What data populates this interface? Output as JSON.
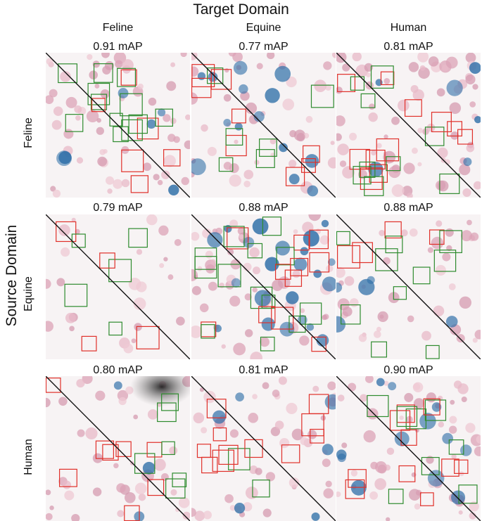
{
  "figure": {
    "title": "Target Domain",
    "y_title": "Source Domain",
    "columns": [
      "Feline",
      "Equine",
      "Human"
    ],
    "rows": [
      "Feline",
      "Equine",
      "Human"
    ],
    "cells": [
      [
        "0.91 mAP",
        "0.77 mAP",
        "0.81 mAP"
      ],
      [
        "0.79 mAP",
        "0.88 mAP",
        "0.88 mAP"
      ],
      [
        "0.80 mAP",
        "0.81 mAP",
        "0.90 mAP"
      ]
    ],
    "colors": {
      "true_box": "#2e8b2e",
      "false_box": "#e0302a",
      "diagonal": "#111111",
      "blue_cell": "#2f6fa8"
    }
  }
}
